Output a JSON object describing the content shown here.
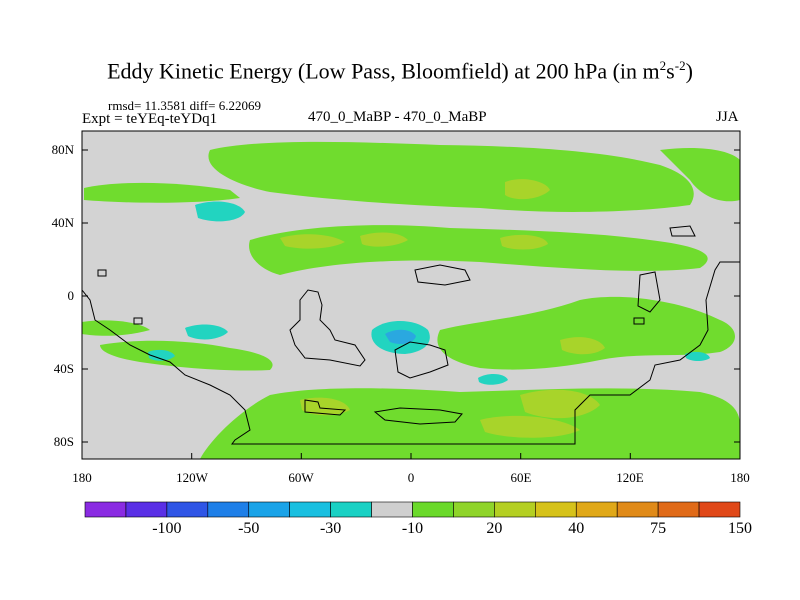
{
  "title_parts": {
    "main": "Eddy Kinetic Energy (Low Pass, Bloomfield) at 200 hPa (in m",
    "sup1": "2",
    "mid": "s",
    "sup2": "-2",
    "end": ")"
  },
  "stats": "rmsd= 11.3581 diff= 6.22069",
  "expt": "Expt = teYEq-teYDq1",
  "center_label": "470_0_MaBP - 470_0_MaBP",
  "season": "JJA",
  "lat_ticks": [
    "80N",
    "40N",
    "0",
    "40S",
    "80S"
  ],
  "lon_ticks": [
    "180",
    "120W",
    "60W",
    "0",
    "60E",
    "120E",
    "180"
  ],
  "colorbar": {
    "colors": [
      "#8a2be2",
      "#5a2fe6",
      "#2f55e6",
      "#1e7fe8",
      "#1aa3e8",
      "#19bfe0",
      "#1ad1c4",
      "#cfcfcf",
      "#6ad92a",
      "#8fd42a",
      "#b4cf22",
      "#d6c21a",
      "#e0a818",
      "#e08a18",
      "#e06a18",
      "#e04818"
    ],
    "labels": [
      "-100",
      "-50",
      "-30",
      "-10",
      "20",
      "40",
      "75",
      "150"
    ]
  },
  "colors": {
    "land_bg": "#d3d3d3",
    "green": "#70dc2e",
    "yellow_green": "#a8d42a",
    "cyan": "#22d4c0",
    "blue": "#2aa8e0"
  }
}
